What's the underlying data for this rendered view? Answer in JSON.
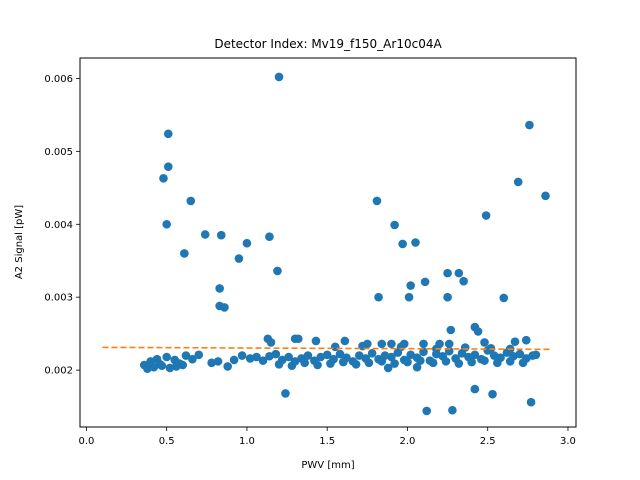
{
  "chart_data": {
    "type": "scatter",
    "title": "Detector Index: Mv19_f150_Ar10c04A",
    "xlabel": "PWV [mm]",
    "ylabel": "A2 Signal [pW]",
    "xlim": [
      -0.04,
      3.05
    ],
    "ylim": [
      0.00122,
      0.00628
    ],
    "x_ticks": [
      0.0,
      0.5,
      1.0,
      1.5,
      2.0,
      2.5,
      3.0
    ],
    "x_tick_labels": [
      "0.0",
      "0.5",
      "1.0",
      "1.5",
      "2.0",
      "2.5",
      "3.0"
    ],
    "y_ticks": [
      0.002,
      0.003,
      0.004,
      0.005,
      0.006
    ],
    "y_tick_labels": [
      "0.002",
      "0.003",
      "0.004",
      "0.005",
      "0.006"
    ],
    "grid": false,
    "colors": {
      "points": "#1f77b4",
      "fit": "#ff7f0e",
      "axes": "#000000"
    },
    "scatter": {
      "x": [
        1.2,
        0.51,
        0.51,
        0.48,
        0.65,
        0.5,
        0.74,
        0.84,
        1.14,
        1.0,
        0.61,
        0.95,
        1.19,
        0.83,
        0.83,
        0.86,
        1.81,
        1.92,
        1.97,
        2.05,
        2.11,
        2.25,
        2.32,
        2.35,
        2.02,
        1.82,
        2.01,
        2.25,
        2.6,
        2.49,
        2.69,
        2.76,
        2.86,
        2.27,
        2.12,
        2.28,
        2.42,
        2.53,
        2.77,
        1.24,
        1.13,
        1.15,
        1.3,
        1.32,
        1.43,
        1.61,
        1.75,
        1.84,
        1.9,
        1.98,
        2.1,
        2.2,
        2.26,
        2.42,
        2.44,
        2.48,
        2.67,
        2.74,
        0.36,
        0.4,
        0.44,
        0.46,
        0.5,
        0.55,
        0.58,
        0.62,
        0.66,
        0.7,
        0.78,
        0.82,
        0.88,
        0.92,
        0.97,
        1.02,
        1.06,
        1.1,
        1.14,
        1.18,
        1.22,
        1.26,
        1.3,
        1.34,
        1.38,
        1.42,
        1.46,
        1.5,
        1.54,
        1.58,
        1.62,
        1.66,
        1.7,
        1.74,
        1.78,
        1.82,
        1.86,
        1.9,
        1.94,
        1.98,
        2.02,
        2.06,
        2.1,
        2.14,
        2.18,
        2.22,
        2.26,
        2.3,
        2.34,
        2.38,
        2.42,
        2.46,
        2.5,
        2.54,
        2.58,
        2.62,
        2.66,
        2.7,
        2.74,
        2.78,
        2.8,
        0.38,
        0.42,
        0.47,
        0.52,
        0.56,
        0.6,
        1.2,
        1.28,
        1.36,
        1.44,
        1.52,
        1.6,
        1.68,
        1.76,
        1.84,
        1.92,
        2.0,
        2.08,
        2.16,
        2.24,
        2.32,
        2.4,
        2.48,
        2.56,
        2.64,
        2.72,
        1.55,
        1.72,
        1.96,
        2.18,
        2.36,
        2.52,
        2.64,
        1.88,
        2.06
      ],
      "y": [
        0.00602,
        0.00524,
        0.00479,
        0.00463,
        0.00432,
        0.004,
        0.00386,
        0.00385,
        0.00383,
        0.00374,
        0.0036,
        0.00353,
        0.00336,
        0.00312,
        0.00288,
        0.00286,
        0.00432,
        0.00399,
        0.00373,
        0.00375,
        0.00321,
        0.00333,
        0.00333,
        0.00322,
        0.00316,
        0.003,
        0.003,
        0.003,
        0.00299,
        0.00412,
        0.00458,
        0.00536,
        0.00439,
        0.00255,
        0.00144,
        0.00145,
        0.00174,
        0.00167,
        0.00156,
        0.00168,
        0.00243,
        0.00238,
        0.00243,
        0.00243,
        0.0024,
        0.0024,
        0.00236,
        0.00236,
        0.00236,
        0.00236,
        0.00236,
        0.00236,
        0.00236,
        0.00259,
        0.00253,
        0.00238,
        0.00239,
        0.00241,
        0.00207,
        0.00212,
        0.00215,
        0.00208,
        0.00218,
        0.00214,
        0.00209,
        0.0022,
        0.00215,
        0.00221,
        0.0021,
        0.00212,
        0.00205,
        0.00214,
        0.0022,
        0.00216,
        0.00218,
        0.00213,
        0.00219,
        0.00222,
        0.00214,
        0.00218,
        0.00212,
        0.00216,
        0.0022,
        0.00213,
        0.00218,
        0.00221,
        0.00215,
        0.00222,
        0.00217,
        0.00212,
        0.0022,
        0.00216,
        0.00223,
        0.00215,
        0.0022,
        0.00218,
        0.00224,
        0.00214,
        0.00221,
        0.00217,
        0.00225,
        0.00213,
        0.00222,
        0.00219,
        0.00226,
        0.00216,
        0.00223,
        0.00218,
        0.00221,
        0.00215,
        0.00227,
        0.0022,
        0.00217,
        0.00224,
        0.00219,
        0.00222,
        0.00216,
        0.0022,
        0.00221,
        0.00202,
        0.00204,
        0.00206,
        0.00203,
        0.00205,
        0.00207,
        0.00208,
        0.00206,
        0.0021,
        0.00207,
        0.00209,
        0.00211,
        0.00208,
        0.0021,
        0.00212,
        0.00209,
        0.00211,
        0.00213,
        0.0021,
        0.00212,
        0.00209,
        0.00211,
        0.00213,
        0.0021,
        0.00212,
        0.0021,
        0.00232,
        0.00233,
        0.00232,
        0.00229,
        0.00231,
        0.0023,
        0.00229,
        0.00203,
        0.00204
      ]
    },
    "fit_line": {
      "x": [
        0.1,
        2.9
      ],
      "y": [
        0.002312,
        0.002285
      ],
      "style": "dashed"
    }
  }
}
